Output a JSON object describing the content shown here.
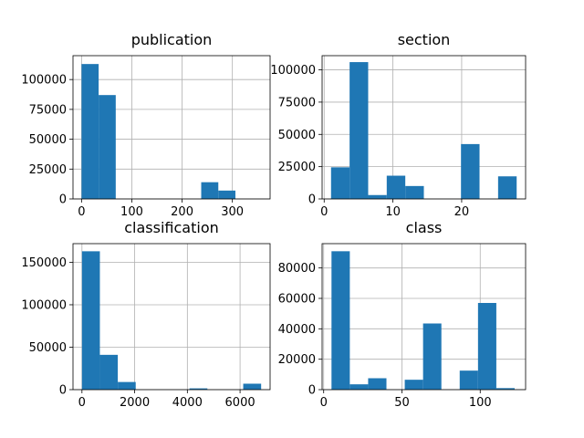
{
  "chart_data": [
    {
      "type": "bar",
      "title": "publication",
      "xlim": [
        -17,
        375
      ],
      "ylim": [
        0,
        120000
      ],
      "xticks": [
        0,
        100,
        200,
        300
      ],
      "yticks": [
        0,
        25000,
        50000,
        75000,
        100000
      ],
      "grid": true,
      "bar_color": "#1f77b4",
      "bins": [
        {
          "x0": 0,
          "x1": 34,
          "value": 113000
        },
        {
          "x0": 34,
          "x1": 68,
          "value": 87000
        },
        {
          "x0": 68,
          "x1": 102,
          "value": 0
        },
        {
          "x0": 102,
          "x1": 136,
          "value": 0
        },
        {
          "x0": 136,
          "x1": 170,
          "value": 0
        },
        {
          "x0": 170,
          "x1": 204,
          "value": 0
        },
        {
          "x0": 204,
          "x1": 238,
          "value": 0
        },
        {
          "x0": 238,
          "x1": 272,
          "value": 14000
        },
        {
          "x0": 272,
          "x1": 306,
          "value": 7000
        },
        {
          "x0": 306,
          "x1": 340,
          "value": 0
        }
      ]
    },
    {
      "type": "bar",
      "title": "section",
      "xlim": [
        -0.3,
        29.3
      ],
      "ylim": [
        0,
        111000
      ],
      "xticks": [
        0,
        10,
        20
      ],
      "yticks": [
        0,
        25000,
        50000,
        75000,
        100000
      ],
      "grid": true,
      "bar_color": "#1f77b4",
      "bins": [
        {
          "x0": 1,
          "x1": 3.7,
          "value": 24500
        },
        {
          "x0": 3.7,
          "x1": 6.4,
          "value": 106000
        },
        {
          "x0": 6.4,
          "x1": 9.1,
          "value": 3000
        },
        {
          "x0": 9.1,
          "x1": 11.8,
          "value": 18000
        },
        {
          "x0": 11.8,
          "x1": 14.5,
          "value": 10000
        },
        {
          "x0": 14.5,
          "x1": 17.2,
          "value": 0
        },
        {
          "x0": 17.2,
          "x1": 19.9,
          "value": 0
        },
        {
          "x0": 19.9,
          "x1": 22.6,
          "value": 42500
        },
        {
          "x0": 22.6,
          "x1": 25.3,
          "value": 0
        },
        {
          "x0": 25.3,
          "x1": 28,
          "value": 17500
        }
      ]
    },
    {
      "type": "bar",
      "title": "classification",
      "xlim": [
        -340,
        7140
      ],
      "ylim": [
        0,
        172000
      ],
      "xticks": [
        0,
        2000,
        4000,
        6000
      ],
      "yticks": [
        0,
        50000,
        100000,
        150000
      ],
      "grid": true,
      "bar_color": "#1f77b4",
      "bins": [
        {
          "x0": 0,
          "x1": 680,
          "value": 163000
        },
        {
          "x0": 680,
          "x1": 1360,
          "value": 41000
        },
        {
          "x0": 1360,
          "x1": 2040,
          "value": 9000
        },
        {
          "x0": 2040,
          "x1": 2720,
          "value": 0
        },
        {
          "x0": 2720,
          "x1": 3400,
          "value": 0
        },
        {
          "x0": 3400,
          "x1": 4080,
          "value": 0
        },
        {
          "x0": 4080,
          "x1": 4760,
          "value": 1500
        },
        {
          "x0": 4760,
          "x1": 5440,
          "value": 0
        },
        {
          "x0": 5440,
          "x1": 6120,
          "value": 0
        },
        {
          "x0": 6120,
          "x1": 6800,
          "value": 7000
        }
      ]
    },
    {
      "type": "bar",
      "title": "class",
      "xlim": [
        -1,
        129
      ],
      "ylim": [
        0,
        96000
      ],
      "xticks": [
        0,
        50,
        100
      ],
      "yticks": [
        0,
        20000,
        40000,
        60000,
        80000
      ],
      "grid": true,
      "bar_color": "#1f77b4",
      "bins": [
        {
          "x0": 5,
          "x1": 16.7,
          "value": 91000
        },
        {
          "x0": 16.7,
          "x1": 28.4,
          "value": 3500
        },
        {
          "x0": 28.4,
          "x1": 40.1,
          "value": 7500
        },
        {
          "x0": 40.1,
          "x1": 51.8,
          "value": 0
        },
        {
          "x0": 51.8,
          "x1": 63.5,
          "value": 6500
        },
        {
          "x0": 63.5,
          "x1": 75.2,
          "value": 43500
        },
        {
          "x0": 75.2,
          "x1": 86.9,
          "value": 0
        },
        {
          "x0": 86.9,
          "x1": 98.6,
          "value": 12500
        },
        {
          "x0": 98.6,
          "x1": 110.3,
          "value": 57000
        },
        {
          "x0": 110.3,
          "x1": 122,
          "value": 1000
        }
      ]
    }
  ]
}
